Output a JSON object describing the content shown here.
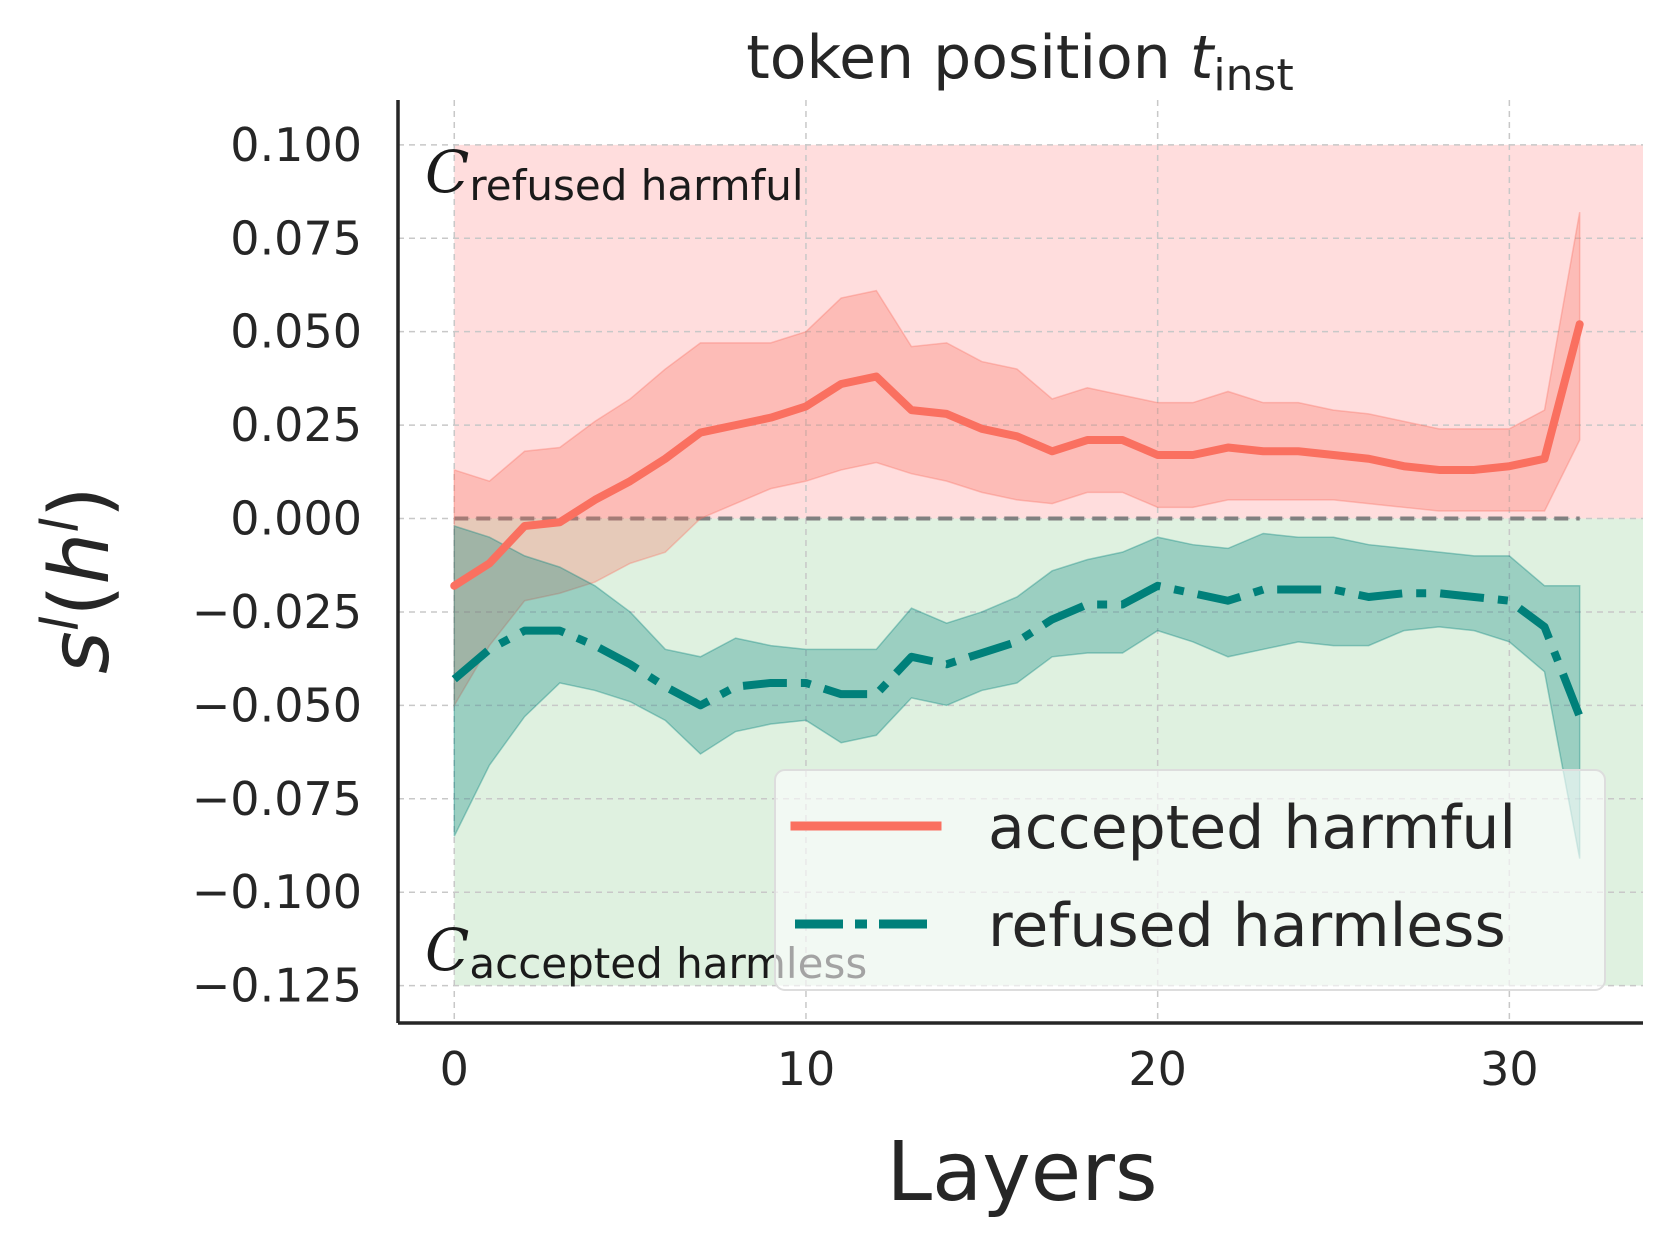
{
  "chart_data": {
    "type": "line",
    "title": "token position ",
    "title_subscript_var": "t",
    "title_subscript": "inst",
    "xlabel": "Layers",
    "ylabel_parts": {
      "base": "s",
      "sup": "l",
      "open": "(",
      "inner": "h",
      "inner_sup": "l",
      "close": ")"
    },
    "xlim": [
      -1.6,
      33.8
    ],
    "ylim": [
      -0.135,
      0.112
    ],
    "xticks": [
      0,
      10,
      20,
      30
    ],
    "xtick_labels": [
      "0",
      "10",
      "20",
      "30"
    ],
    "yticks": [
      0.1,
      0.075,
      0.05,
      0.025,
      0.0,
      -0.025,
      -0.05,
      -0.075,
      -0.1,
      -0.125
    ],
    "ytick_labels": [
      "0.100",
      "0.075",
      "0.050",
      "0.025",
      "0.000",
      "−0.025",
      "−0.050",
      "−0.075",
      "−0.100",
      "−0.125"
    ],
    "grid": true,
    "legend_position": "lower-right",
    "regions": [
      {
        "name": "refused harmful",
        "letter": "C",
        "sub": "refused harmful",
        "y_from": 0.0,
        "y_to": 0.1,
        "color": "#ffb3b3"
      },
      {
        "name": "accepted harmless",
        "letter": "C",
        "sub": "accepted harmless",
        "y_from": -0.125,
        "y_to": 0.0,
        "color": "#b8dfbb"
      }
    ],
    "x": [
      0,
      1,
      2,
      3,
      4,
      5,
      6,
      7,
      8,
      9,
      10,
      11,
      12,
      13,
      14,
      15,
      16,
      17,
      18,
      19,
      20,
      21,
      22,
      23,
      24,
      25,
      26,
      27,
      28,
      29,
      30,
      31,
      32
    ],
    "series": [
      {
        "name": "accepted harmful",
        "style": "solid",
        "color": "#fa7060",
        "values": [
          -0.018,
          -0.012,
          -0.002,
          -0.001,
          0.005,
          0.01,
          0.016,
          0.023,
          0.025,
          0.027,
          0.03,
          0.036,
          0.038,
          0.029,
          0.028,
          0.024,
          0.022,
          0.018,
          0.021,
          0.021,
          0.017,
          0.017,
          0.019,
          0.018,
          0.018,
          0.017,
          0.016,
          0.014,
          0.013,
          0.013,
          0.014,
          0.016,
          0.052
        ],
        "upper": [
          0.013,
          0.01,
          0.018,
          0.019,
          0.026,
          0.032,
          0.04,
          0.047,
          0.047,
          0.047,
          0.05,
          0.059,
          0.061,
          0.046,
          0.047,
          0.042,
          0.04,
          0.032,
          0.035,
          0.033,
          0.031,
          0.031,
          0.034,
          0.031,
          0.031,
          0.029,
          0.028,
          0.026,
          0.024,
          0.024,
          0.024,
          0.029,
          0.082
        ],
        "lower": [
          -0.05,
          -0.034,
          -0.022,
          -0.02,
          -0.017,
          -0.012,
          -0.009,
          0.0,
          0.004,
          0.008,
          0.01,
          0.013,
          0.015,
          0.012,
          0.01,
          0.007,
          0.005,
          0.004,
          0.007,
          0.007,
          0.003,
          0.003,
          0.005,
          0.005,
          0.005,
          0.005,
          0.004,
          0.003,
          0.002,
          0.002,
          0.002,
          0.002,
          0.021
        ]
      },
      {
        "name": "refused harmless",
        "style": "dashdot",
        "color": "#00807a",
        "values": [
          -0.043,
          -0.035,
          -0.03,
          -0.03,
          -0.034,
          -0.039,
          -0.045,
          -0.05,
          -0.045,
          -0.044,
          -0.044,
          -0.047,
          -0.047,
          -0.037,
          -0.039,
          -0.036,
          -0.033,
          -0.027,
          -0.023,
          -0.023,
          -0.018,
          -0.02,
          -0.022,
          -0.019,
          -0.019,
          -0.019,
          -0.021,
          -0.02,
          -0.02,
          -0.021,
          -0.022,
          -0.029,
          -0.053
        ],
        "upper": [
          -0.002,
          -0.005,
          -0.01,
          -0.013,
          -0.018,
          -0.025,
          -0.035,
          -0.037,
          -0.032,
          -0.034,
          -0.035,
          -0.035,
          -0.035,
          -0.024,
          -0.028,
          -0.025,
          -0.021,
          -0.014,
          -0.011,
          -0.009,
          -0.005,
          -0.007,
          -0.008,
          -0.004,
          -0.005,
          -0.005,
          -0.007,
          -0.008,
          -0.009,
          -0.01,
          -0.01,
          -0.018,
          -0.018
        ],
        "lower": [
          -0.085,
          -0.066,
          -0.053,
          -0.044,
          -0.046,
          -0.049,
          -0.054,
          -0.063,
          -0.057,
          -0.055,
          -0.054,
          -0.06,
          -0.058,
          -0.048,
          -0.05,
          -0.046,
          -0.044,
          -0.037,
          -0.036,
          -0.036,
          -0.03,
          -0.033,
          -0.037,
          -0.035,
          -0.033,
          -0.034,
          -0.034,
          -0.03,
          -0.029,
          -0.03,
          -0.033,
          -0.041,
          -0.091
        ]
      }
    ]
  }
}
